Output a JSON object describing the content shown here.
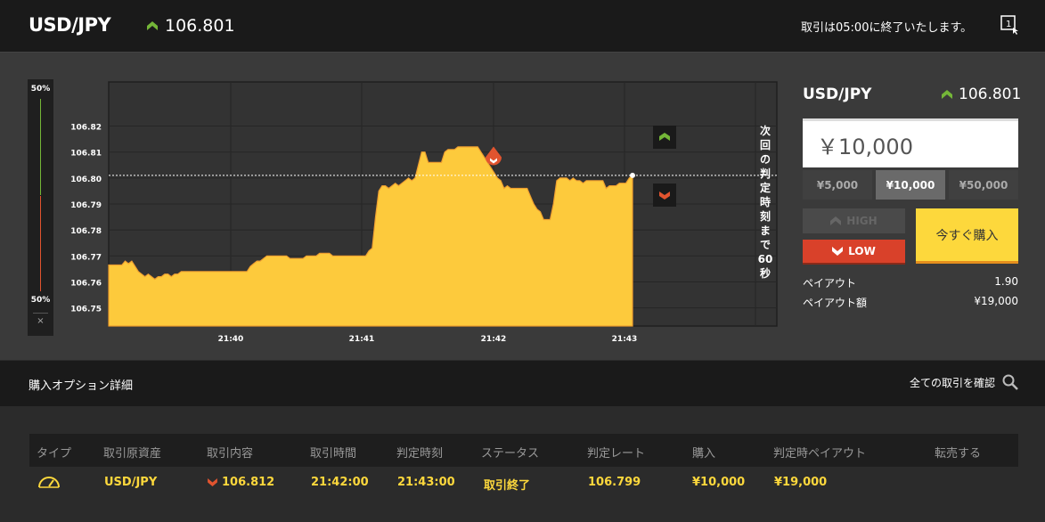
{
  "header": {
    "pair": "USD/JPY",
    "rate": "106.801",
    "notice": "取引は05:00に終了いたします。",
    "window_icon_label": "1"
  },
  "gauge": {
    "top_label": "50%",
    "bottom_label": "50%",
    "close": "×"
  },
  "chart_data": {
    "type": "area",
    "y_ticks": [
      "106.82",
      "106.81",
      "106.80",
      "106.79",
      "106.78",
      "106.77",
      "106.76",
      "106.75"
    ],
    "x_ticks": [
      "21:40",
      "21:41",
      "21:42",
      "21:43"
    ],
    "ylim": [
      106.743,
      106.837
    ],
    "current_rate": 106.801,
    "entry_marker": 106.807,
    "series": [
      {
        "values": [
          106.7665,
          106.7665,
          106.7665,
          106.7665,
          106.7665,
          106.768,
          106.767,
          106.768,
          106.766,
          106.764,
          106.763,
          106.762,
          106.763,
          106.762,
          106.761,
          106.762,
          106.762,
          106.763,
          106.763,
          106.762,
          106.763,
          106.763,
          106.764,
          106.764,
          106.764,
          106.764,
          106.764,
          106.764,
          106.764,
          106.764,
          106.764,
          106.764,
          106.764,
          106.764,
          106.764,
          106.764,
          106.764,
          106.764,
          106.764,
          106.764,
          106.764,
          106.764,
          106.764,
          106.766,
          106.767,
          106.768,
          106.768,
          106.769,
          106.77,
          106.77,
          106.77,
          106.77,
          106.77,
          106.77,
          106.77,
          106.769,
          106.769,
          106.769,
          106.769,
          106.769,
          106.77,
          106.77,
          106.77,
          106.77,
          106.771,
          106.771,
          106.771,
          106.771,
          106.77,
          106.77,
          106.77,
          106.77,
          106.77,
          106.77,
          106.77,
          106.77,
          106.77,
          106.77,
          106.77,
          106.772,
          106.773,
          106.785,
          106.795,
          106.797,
          106.797,
          106.796,
          106.797,
          106.798,
          106.797,
          106.798,
          106.799,
          106.8,
          106.799,
          106.8,
          106.805,
          106.81,
          106.81,
          106.806,
          106.806,
          106.806,
          106.806,
          106.806,
          106.81,
          106.811,
          106.811,
          106.811,
          106.812,
          106.812,
          106.812,
          106.812,
          106.812,
          106.812,
          106.812,
          106.81,
          106.808,
          106.806,
          106.804,
          106.802,
          106.8,
          106.799,
          106.796,
          106.797,
          106.796,
          106.796,
          106.796,
          106.796,
          106.796,
          106.796,
          106.793,
          106.79,
          106.788,
          106.787,
          106.784,
          106.784,
          106.784,
          106.79,
          106.799,
          106.8,
          106.8,
          106.8,
          106.799,
          106.8,
          106.799,
          106.799,
          106.798,
          106.799,
          106.799,
          106.799,
          106.799,
          106.799,
          106.799,
          106.796,
          106.797,
          106.797,
          106.797,
          106.798,
          106.798,
          106.798,
          106.8,
          106.801
        ]
      }
    ]
  },
  "countdown": "次回の判定時刻まで60秒",
  "panel": {
    "pair": "USD/JPY",
    "rate": "106.801",
    "amount": "￥10,000",
    "presets": [
      "¥5,000",
      "¥10,000",
      "¥50,000"
    ],
    "high_label": "HIGH",
    "low_label": "LOW",
    "buy_label": "今すぐ購入",
    "payout_label": "ペイアウト",
    "payout_value": "1.90",
    "payout_amount_label": "ペイアウト額",
    "payout_amount_value": "¥19,000"
  },
  "section": {
    "title": "購入オプション詳細",
    "all_trades": "全ての取引を確認"
  },
  "table": {
    "headers": [
      "タイプ",
      "取引原資産",
      "取引内容",
      "取引時間",
      "判定時刻",
      "ステータス",
      "判定レート",
      "購入",
      "判定時ペイアウト",
      "転売する"
    ],
    "row": {
      "asset": "USD/JPY",
      "content": "106.812",
      "trade_time": "21:42:00",
      "judge_time": "21:43:00",
      "status": "取引終了",
      "judge_rate": "106.799",
      "purchase": "¥10,000",
      "payout": "¥19,000"
    }
  },
  "colors": {
    "up": "#74b638",
    "down": "#e1542f",
    "accent": "#fdd83c"
  }
}
